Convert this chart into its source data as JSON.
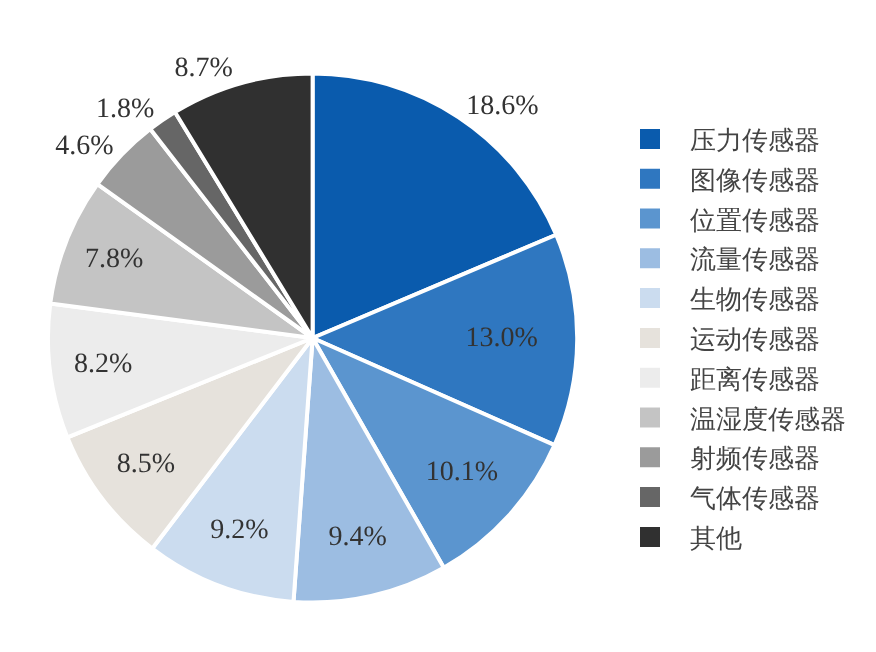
{
  "chart_data": {
    "type": "pie",
    "categories": [
      "压力传感器",
      "图像传感器",
      "位置传感器",
      "流量传感器",
      "生物传感器",
      "运动传感器",
      "距离传感器",
      "温湿度传感器",
      "射频传感器",
      "气体传感器",
      "其他"
    ],
    "values": [
      18.6,
      13.0,
      10.1,
      9.4,
      9.2,
      8.5,
      8.2,
      7.8,
      4.6,
      1.8,
      8.7
    ],
    "value_labels": [
      "18.6%",
      "13.0%",
      "10.1%",
      "9.4%",
      "9.2%",
      "8.5%",
      "8.2%",
      "7.8%",
      "4.6%",
      "1.8%",
      "8.7%"
    ],
    "colors": [
      "#0a5bad",
      "#2f77c0",
      "#5b95cf",
      "#9cbde2",
      "#cbdcef",
      "#e6e2dc",
      "#ececec",
      "#c4c4c4",
      "#9b9b9b",
      "#666666",
      "#303030"
    ],
    "legend": "right"
  }
}
